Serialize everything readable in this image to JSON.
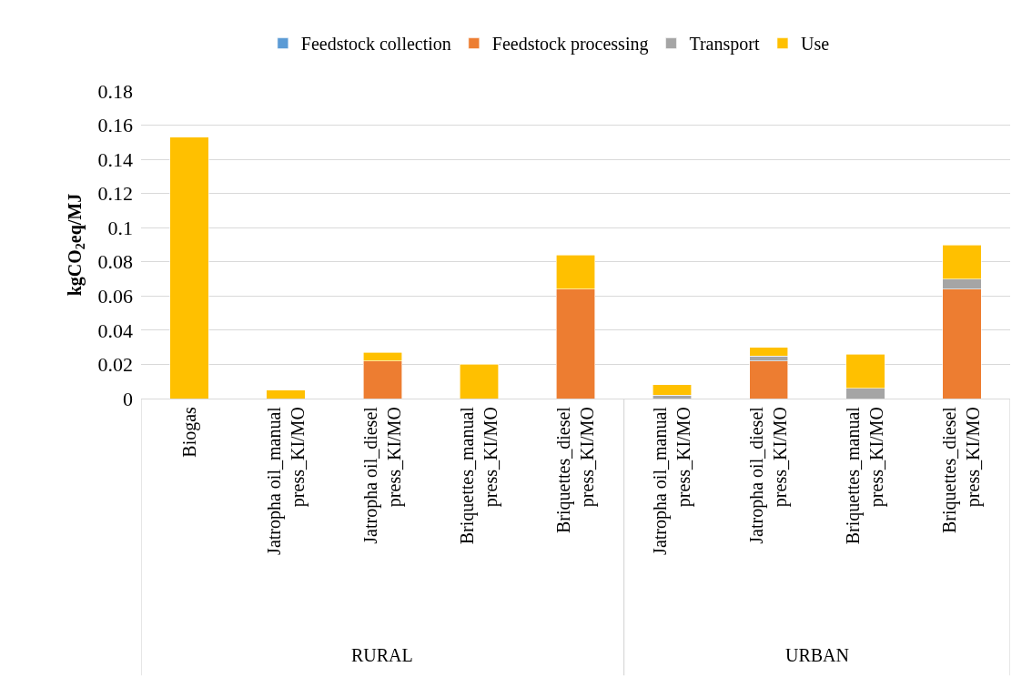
{
  "chart_data": {
    "type": "bar",
    "stacked": true,
    "ylabel": "kgCO$_{2}$eq/MJ",
    "categories": [
      "Biogas",
      "Jatropha oil_manual press_KI/MO",
      "Jatropha oil_diesel press_KI/MO",
      "Briquettes_manual press_KI/MO",
      "Briquettes_diesel press_KI/MO",
      "Jatropha oil_manual press_KI/MO",
      "Jatropha oil_diesel press_KI/MO",
      "Briquettes_manual press_KI/MO",
      "Briquettes_diesel press_KI/MO"
    ],
    "series": [
      {
        "name": "Feedstock collection",
        "color": "#5b9bd5",
        "values": [
          0,
          0,
          0,
          0,
          0,
          0,
          0,
          0,
          0
        ]
      },
      {
        "name": "Feedstock processing",
        "color": "#ed7d31",
        "values": [
          0,
          0,
          0.022,
          0,
          0.064,
          0,
          0.022,
          0,
          0.064
        ]
      },
      {
        "name": "Transport",
        "color": "#a5a5a5",
        "values": [
          0,
          0,
          0,
          0,
          0,
          0.002,
          0.003,
          0.006,
          0.006
        ]
      },
      {
        "name": "Use",
        "color": "#ffc000",
        "values": [
          0.153,
          0.005,
          0.005,
          0.02,
          0.02,
          0.006,
          0.005,
          0.02,
          0.02
        ]
      }
    ],
    "ylim": [
      0,
      0.18
    ],
    "yticks": [
      0,
      0.02,
      0.04,
      0.06,
      0.08,
      0.1,
      0.12,
      0.14,
      0.16,
      0.18
    ],
    "grid": "y",
    "legend": "top",
    "annotations": [
      "RURAL",
      "URBAN"
    ]
  }
}
